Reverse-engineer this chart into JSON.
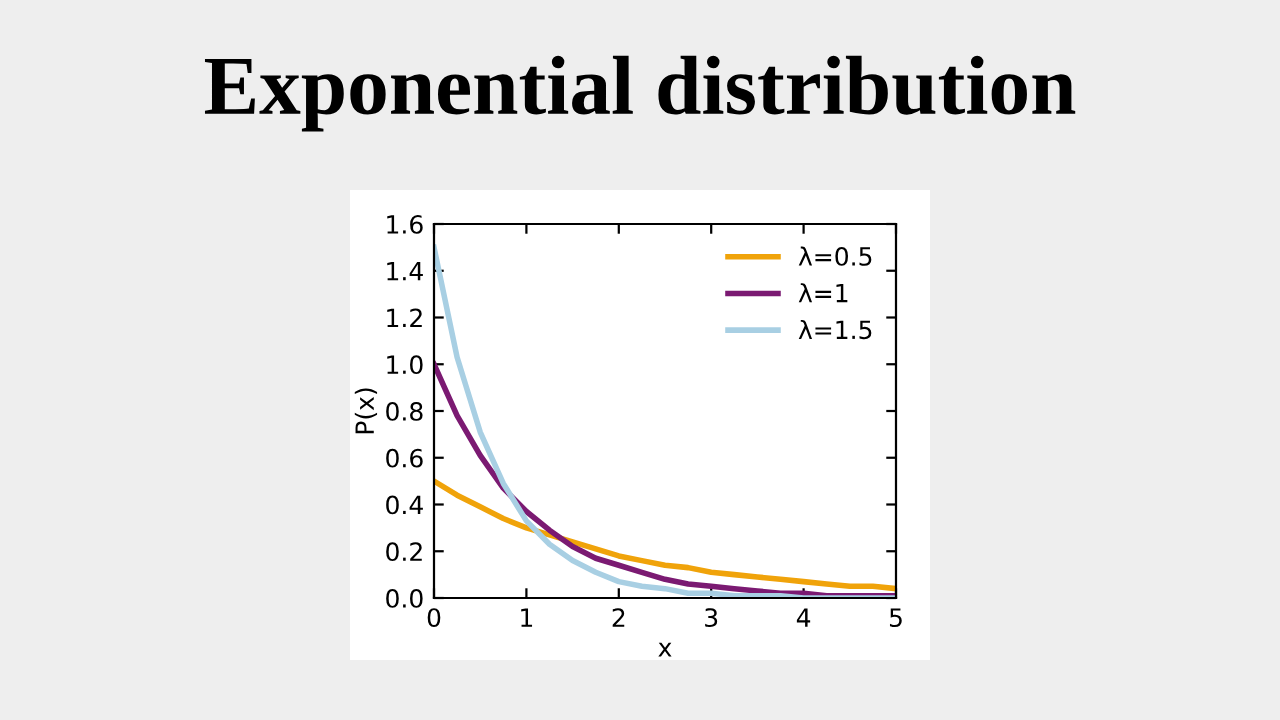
{
  "chart_data": {
    "type": "line",
    "title": "Exponential distribution",
    "xlabel": "x",
    "ylabel": "P(x)",
    "x": [
      0,
      0.25,
      0.5,
      0.75,
      1,
      1.25,
      1.5,
      1.75,
      2,
      2.25,
      2.5,
      2.75,
      3,
      3.25,
      3.5,
      3.75,
      4,
      4.25,
      4.5,
      4.75,
      5
    ],
    "series": [
      {
        "name": "λ=0.5",
        "color": "#f0a30a",
        "values": [
          0.5,
          0.44,
          0.39,
          0.34,
          0.3,
          0.27,
          0.24,
          0.21,
          0.18,
          0.16,
          0.14,
          0.13,
          0.11,
          0.1,
          0.09,
          0.08,
          0.07,
          0.06,
          0.05,
          0.05,
          0.04
        ]
      },
      {
        "name": "λ=1",
        "color": "#7b1a72",
        "values": [
          1.0,
          0.78,
          0.61,
          0.47,
          0.37,
          0.29,
          0.22,
          0.17,
          0.14,
          0.11,
          0.08,
          0.06,
          0.05,
          0.04,
          0.03,
          0.02,
          0.02,
          0.01,
          0.01,
          0.01,
          0.01
        ]
      },
      {
        "name": "λ=1.5",
        "color": "#a8cfe3",
        "values": [
          1.5,
          1.03,
          0.71,
          0.49,
          0.33,
          0.23,
          0.16,
          0.11,
          0.07,
          0.05,
          0.04,
          0.02,
          0.02,
          0.01,
          0.01,
          0.01,
          0.0,
          0.0,
          0.0,
          0.0,
          0.0
        ]
      }
    ],
    "xlim": [
      0,
      5
    ],
    "xticks": [
      0,
      1,
      2,
      3,
      4,
      5
    ],
    "ylim": [
      0,
      1.6
    ],
    "yticks": [
      {
        "value": 0,
        "label": "0.0"
      },
      0.2,
      0.4,
      0.6,
      0.8,
      {
        "value": 1,
        "label": "1.0"
      },
      1.2,
      1.4,
      1.6
    ],
    "legend": "top right",
    "grid": false,
    "marker": "none",
    "line_style": "solid"
  }
}
